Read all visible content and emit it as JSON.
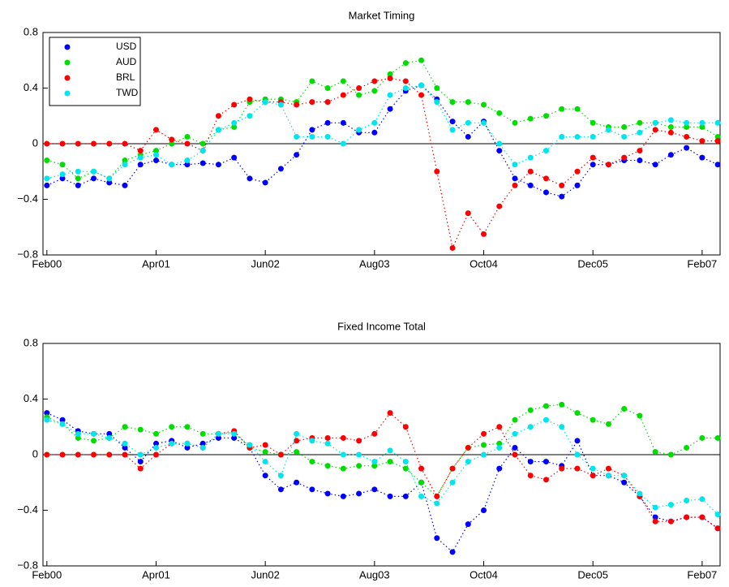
{
  "chart_data": [
    {
      "type": "line",
      "title": "Market Timing",
      "x": [
        0,
        2,
        4,
        6,
        8,
        10,
        12,
        14,
        16,
        18,
        20,
        22,
        24,
        26,
        28,
        30,
        32,
        34,
        36,
        38,
        40,
        42,
        44,
        46,
        48,
        50,
        52,
        54,
        56,
        58,
        60,
        62,
        64,
        66,
        68,
        70,
        72,
        74,
        76,
        78,
        80,
        82,
        84,
        86
      ],
      "xlim": [
        -0.5,
        86.3
      ],
      "xticks": [
        {
          "value": 0,
          "label": "Feb00"
        },
        {
          "value": 14,
          "label": "Apr01"
        },
        {
          "value": 28,
          "label": "Jun02"
        },
        {
          "value": 42,
          "label": "Aug03"
        },
        {
          "value": 56,
          "label": "Oct04"
        },
        {
          "value": 70,
          "label": "Dec05"
        },
        {
          "value": 84,
          "label": "Feb07"
        }
      ],
      "ylim": [
        -0.8,
        0.8
      ],
      "yticks": [
        {
          "value": -0.8,
          "label": "−0.8"
        },
        {
          "value": -0.4,
          "label": "−0.4"
        },
        0,
        0.4,
        0.8
      ],
      "legend": "upper left",
      "series": [
        {
          "name": "USD",
          "color": "#0000ff",
          "values": [
            -0.3,
            -0.25,
            -0.3,
            -0.25,
            -0.28,
            -0.3,
            -0.15,
            -0.12,
            -0.15,
            -0.15,
            -0.14,
            -0.15,
            -0.1,
            -0.25,
            -0.28,
            -0.18,
            -0.08,
            0.1,
            0.15,
            0.15,
            0.08,
            0.08,
            0.25,
            0.38,
            0.42,
            0.32,
            0.16,
            0.05,
            0.16,
            -0.05,
            -0.25,
            -0.3,
            -0.35,
            -0.38,
            -0.3,
            -0.15,
            -0.15,
            -0.12,
            -0.12,
            -0.15,
            -0.08,
            -0.03,
            -0.1,
            -0.15
          ]
        },
        {
          "name": "AUD",
          "color": "#00dd00",
          "values": [
            -0.12,
            -0.15,
            -0.25,
            -0.2,
            -0.25,
            -0.12,
            -0.08,
            -0.05,
            0,
            0.05,
            0,
            0.1,
            0.12,
            0.3,
            0.32,
            0.32,
            0.3,
            0.45,
            0.4,
            0.45,
            0.35,
            0.38,
            0.5,
            0.58,
            0.6,
            0.4,
            0.3,
            0.3,
            0.28,
            0.22,
            0.15,
            0.18,
            0.2,
            0.25,
            0.25,
            0.15,
            0.12,
            0.12,
            0.15,
            0.15,
            0.12,
            0.12,
            0.12,
            0.05
          ]
        },
        {
          "name": "BRL",
          "color": "#ff0000",
          "values": [
            0,
            0,
            0,
            0,
            0,
            0,
            -0.05,
            0.1,
            0.03,
            0,
            -0.05,
            0.2,
            0.28,
            0.32,
            0.3,
            0.3,
            0.28,
            0.3,
            0.3,
            0.35,
            0.4,
            0.45,
            0.47,
            0.45,
            0.35,
            -0.2,
            -0.75,
            -0.5,
            -0.65,
            -0.45,
            -0.3,
            -0.2,
            -0.25,
            -0.3,
            -0.2,
            -0.1,
            -0.15,
            -0.1,
            -0.05,
            0.1,
            0.08,
            0.05,
            0.02,
            0.02
          ]
        },
        {
          "name": "TWD",
          "color": "#00e5ee",
          "values": [
            -0.25,
            -0.22,
            -0.2,
            -0.2,
            -0.25,
            -0.15,
            -0.1,
            -0.08,
            -0.15,
            -0.12,
            -0.05,
            0.1,
            0.15,
            0.2,
            0.3,
            0.28,
            0.05,
            0.05,
            0.05,
            0,
            0.1,
            0.15,
            0.35,
            0.4,
            0.42,
            0.3,
            0.1,
            0.15,
            0.15,
            0,
            -0.15,
            -0.1,
            -0.05,
            0.05,
            0.05,
            0.05,
            0.1,
            0.05,
            0.08,
            0.15,
            0.17,
            0.15,
            0.15,
            0.15
          ]
        }
      ]
    },
    {
      "type": "line",
      "title": "Fixed Income Total",
      "x": [
        0,
        2,
        4,
        6,
        8,
        10,
        12,
        14,
        16,
        18,
        20,
        22,
        24,
        26,
        28,
        30,
        32,
        34,
        36,
        38,
        40,
        42,
        44,
        46,
        48,
        50,
        52,
        54,
        56,
        58,
        60,
        62,
        64,
        66,
        68,
        70,
        72,
        74,
        76,
        78,
        80,
        82,
        84,
        86
      ],
      "xlim": [
        -0.5,
        86.3
      ],
      "xticks": [
        {
          "value": 0,
          "label": "Feb00"
        },
        {
          "value": 14,
          "label": "Apr01"
        },
        {
          "value": 28,
          "label": "Jun02"
        },
        {
          "value": 42,
          "label": "Aug03"
        },
        {
          "value": 56,
          "label": "Oct04"
        },
        {
          "value": 70,
          "label": "Dec05"
        },
        {
          "value": 84,
          "label": "Feb07"
        }
      ],
      "ylim": [
        -0.8,
        0.8
      ],
      "yticks": [
        {
          "value": -0.8,
          "label": "−0.8"
        },
        {
          "value": -0.4,
          "label": "−0.4"
        },
        0,
        0.4,
        0.8
      ],
      "series": [
        {
          "name": "USD",
          "color": "#0000ff",
          "values": [
            0.3,
            0.25,
            0.17,
            0.15,
            0.15,
            0.05,
            -0.05,
            0.08,
            0.1,
            0.05,
            0.08,
            0.12,
            0.12,
            0.05,
            -0.15,
            -0.25,
            -0.2,
            -0.25,
            -0.28,
            -0.3,
            -0.28,
            -0.25,
            -0.3,
            -0.3,
            -0.2,
            -0.6,
            -0.7,
            -0.5,
            -0.4,
            -0.1,
            0.05,
            -0.05,
            -0.05,
            -0.08,
            0.1,
            -0.15,
            -0.15,
            -0.2,
            -0.3,
            -0.45,
            -0.48,
            -0.45,
            -0.45,
            -0.53
          ]
        },
        {
          "name": "AUD",
          "color": "#00dd00",
          "values": [
            0.27,
            0.22,
            0.12,
            0.1,
            0.12,
            0.2,
            0.18,
            0.15,
            0.2,
            0.2,
            0.15,
            0.15,
            0.16,
            0.05,
            0.02,
            0,
            0.02,
            -0.05,
            -0.08,
            -0.1,
            -0.08,
            -0.08,
            -0.05,
            -0.1,
            -0.2,
            -0.3,
            -0.1,
            0.05,
            0.07,
            0.08,
            0.25,
            0.32,
            0.35,
            0.36,
            0.3,
            0.25,
            0.22,
            0.33,
            0.28,
            0.02,
            0,
            0.05,
            0.12,
            0.12
          ]
        },
        {
          "name": "BRL",
          "color": "#ff0000",
          "values": [
            0,
            0,
            0,
            0,
            0,
            0,
            -0.1,
            0,
            0.08,
            0.08,
            0.05,
            0.15,
            0.17,
            0.05,
            0.07,
            0,
            0.1,
            0.12,
            0.12,
            0.12,
            0.1,
            0.15,
            0.3,
            0.2,
            -0.1,
            -0.3,
            -0.1,
            0.05,
            0.15,
            0.2,
            0,
            -0.15,
            -0.18,
            -0.1,
            -0.1,
            -0.15,
            -0.1,
            -0.15,
            -0.3,
            -0.48,
            -0.48,
            -0.45,
            -0.45,
            -0.53
          ]
        },
        {
          "name": "TWD",
          "color": "#00e5ee",
          "values": [
            0.25,
            0.22,
            0.15,
            0.15,
            0.12,
            0.08,
            0,
            0.05,
            0.08,
            0.08,
            0.05,
            0.15,
            0.15,
            0.07,
            -0.05,
            -0.15,
            0.15,
            0.1,
            0.08,
            0,
            0,
            -0.05,
            0.03,
            -0.05,
            -0.3,
            -0.35,
            -0.2,
            -0.05,
            0,
            0.05,
            0.15,
            0.2,
            0.25,
            0.2,
            0,
            -0.1,
            -0.15,
            -0.15,
            -0.28,
            -0.38,
            -0.36,
            -0.33,
            -0.32,
            -0.43
          ]
        }
      ]
    }
  ]
}
